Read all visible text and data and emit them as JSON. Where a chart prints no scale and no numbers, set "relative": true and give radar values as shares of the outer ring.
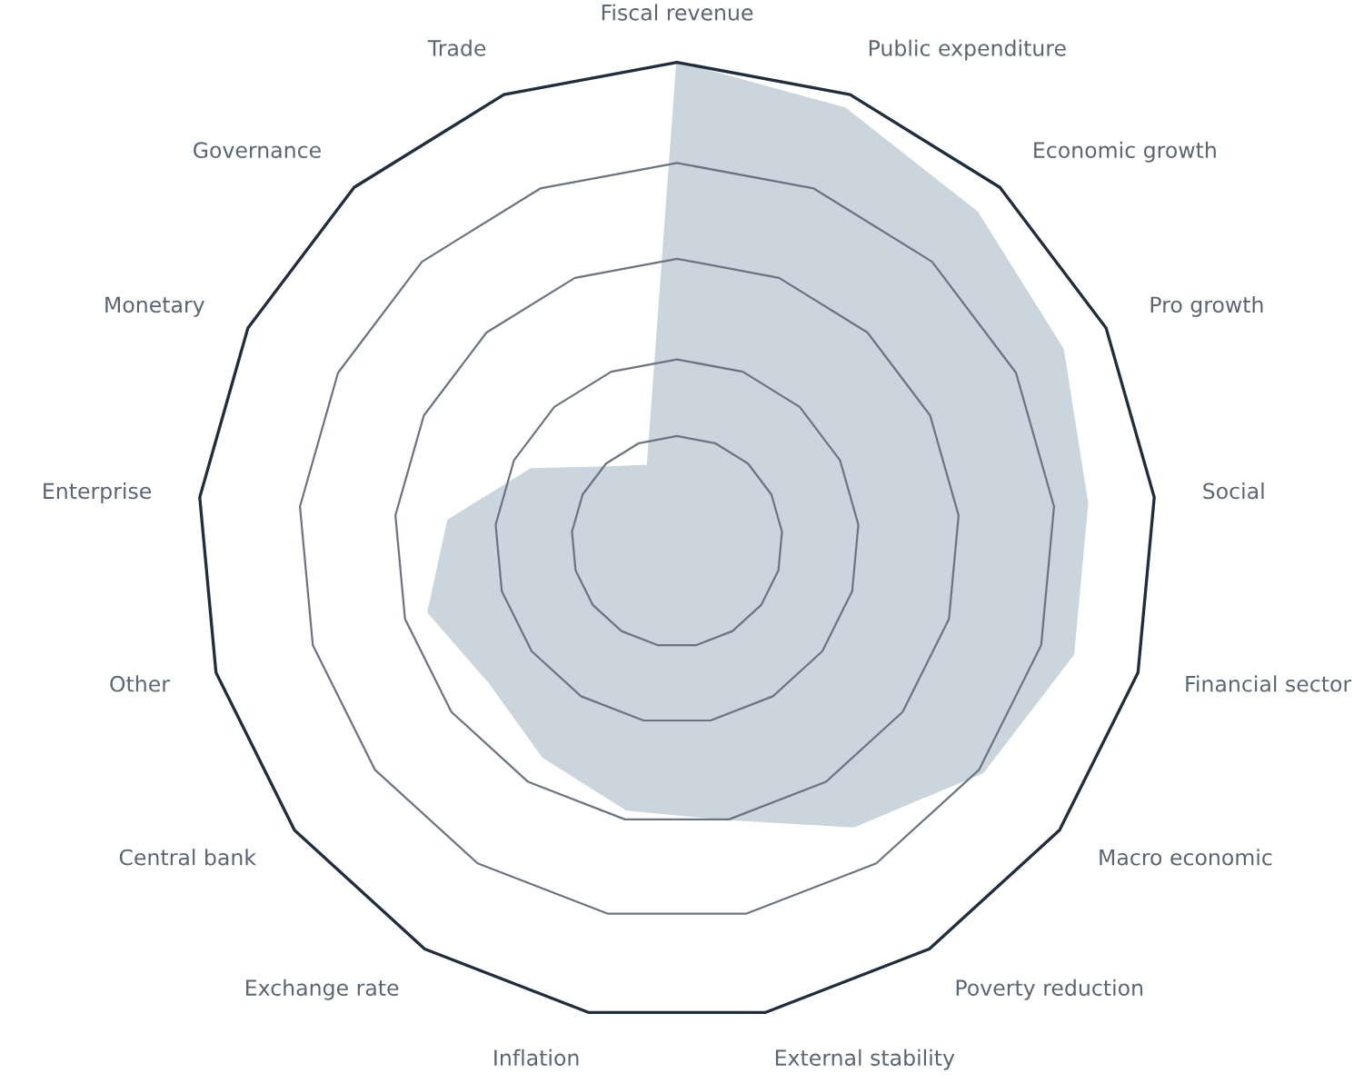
{
  "chart_data": {
    "type": "radar",
    "relative": true,
    "grid": true,
    "categories": [
      "Fiscal revenue",
      "Public expenditure",
      "Economic growth",
      "Pro growth",
      "Social",
      "Financial sector",
      "Macro economic",
      "Poverty reduction",
      "External stability",
      "Inflation",
      "Exchange rate",
      "Central bank",
      "Other",
      "Enterprise",
      "Monetary",
      "Governance",
      "Trade"
    ],
    "series": [
      {
        "color": "#cbd5de",
        "values": [
          1.0,
          0.97,
          0.93,
          0.9,
          0.86,
          0.86,
          0.8,
          0.7,
          0.59,
          0.57,
          0.53,
          0.49,
          0.54,
          0.48,
          0.34,
          0.21,
          0.17
        ]
      }
    ]
  }
}
